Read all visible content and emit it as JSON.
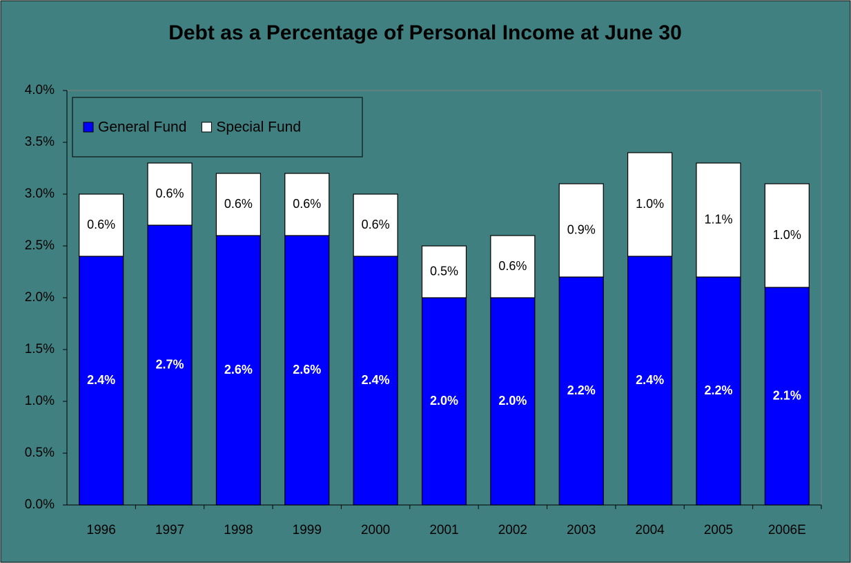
{
  "chart_data": {
    "type": "stacked_bar",
    "title": "Debt as a Percentage of Personal Income at June 30",
    "categories": [
      "1996",
      "1997",
      "1998",
      "1999",
      "2000",
      "2001",
      "2002",
      "2003",
      "2004",
      "2005",
      "2006E"
    ],
    "series": [
      {
        "name": "General Fund",
        "color": "#0000ff",
        "values": [
          2.4,
          2.7,
          2.6,
          2.6,
          2.4,
          2.0,
          2.0,
          2.2,
          2.4,
          2.2,
          2.1
        ],
        "value_labels": [
          "2.4%",
          "2.7%",
          "2.6%",
          "2.6%",
          "2.4%",
          "2.0%",
          "2.0%",
          "2.2%",
          "2.4%",
          "2.2%",
          "2.1%"
        ]
      },
      {
        "name": "Special Fund",
        "color": "#ffffff",
        "values": [
          0.6,
          0.6,
          0.6,
          0.6,
          0.6,
          0.5,
          0.6,
          0.9,
          1.0,
          1.1,
          1.0
        ],
        "value_labels": [
          "0.6%",
          "0.6%",
          "0.6%",
          "0.6%",
          "0.6%",
          "0.5%",
          "0.6%",
          "0.9%",
          "1.0%",
          "1.1%",
          "1.0%"
        ]
      }
    ],
    "ylim": [
      0,
      4
    ],
    "yticks": [
      {
        "value": 0,
        "label": "0.0%"
      },
      {
        "value": 0.5,
        "label": "0.5%"
      },
      {
        "value": 1,
        "label": "1.0%"
      },
      {
        "value": 1.5,
        "label": "1.5%"
      },
      {
        "value": 2,
        "label": "2.0%"
      },
      {
        "value": 2.5,
        "label": "2.5%"
      },
      {
        "value": 3,
        "label": "3.0%"
      },
      {
        "value": 3.5,
        "label": "3.5%"
      },
      {
        "value": 4,
        "label": "4.0%"
      }
    ],
    "grid": false,
    "legend": "top-left"
  }
}
